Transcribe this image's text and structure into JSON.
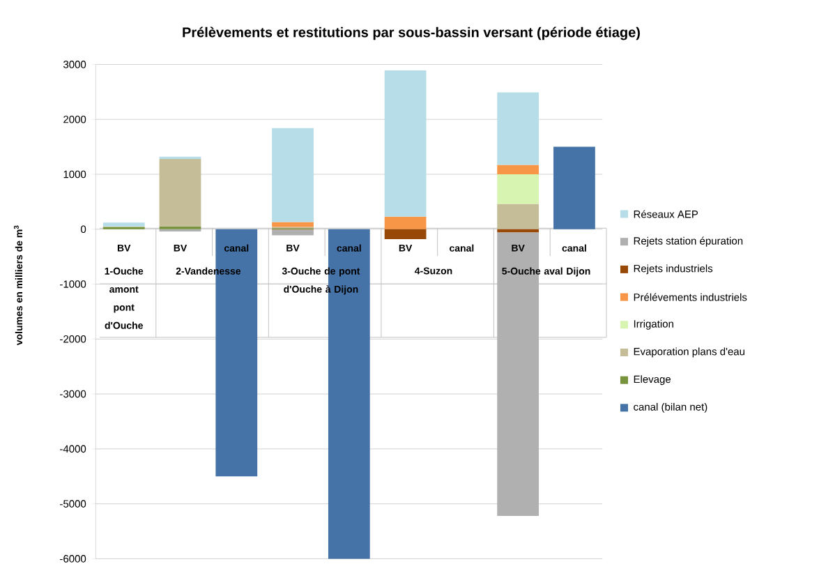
{
  "chart_data": {
    "type": "bar",
    "stacked": true,
    "title": "Prélèvements et restitutions par sous-bassin versant (période étiage)",
    "ylabel": "volumes en milliers de m$^{3}$",
    "categories": [
      "BV",
      "BV",
      "canal",
      "BV",
      "canal",
      "BV",
      "canal",
      "BV",
      "canal"
    ],
    "series": [
      {
        "name": "canal (bilan net)",
        "color": "#4572a7",
        "values": [
          null,
          null,
          -4500,
          null,
          -6000,
          null,
          null,
          null,
          1500
        ]
      },
      {
        "name": "Elevage",
        "color": "#77933c",
        "values": [
          40,
          50,
          null,
          20,
          null,
          null,
          null,
          null,
          null
        ]
      },
      {
        "name": "Evaporation plans d'eau",
        "color": "#c4bd97",
        "values": [
          10,
          1230,
          null,
          20,
          null,
          null,
          null,
          460,
          null
        ]
      },
      {
        "name": "Irrigation",
        "color": "#d7f4b0",
        "values": [
          null,
          null,
          null,
          null,
          null,
          null,
          null,
          540,
          null
        ]
      },
      {
        "name": "Prélévements industriels",
        "color": "#f79646",
        "values": [
          null,
          null,
          null,
          90,
          null,
          230,
          null,
          170,
          null
        ]
      },
      {
        "name": "Rejets industriels",
        "color": "#984807",
        "values": [
          null,
          null,
          null,
          -10,
          null,
          -180,
          null,
          -60,
          null
        ]
      },
      {
        "name": "Rejets station épuration",
        "color": "#b0b0b0",
        "values": [
          null,
          -40,
          null,
          -100,
          null,
          null,
          null,
          -5160,
          null
        ]
      },
      {
        "name": "Réseaux AEP",
        "color": "#b7dde8",
        "values": [
          70,
          40,
          null,
          1710,
          null,
          2660,
          null,
          1320,
          null
        ]
      }
    ],
    "ylim": [
      -6000,
      3000
    ],
    "yticks": [
      -6000,
      -5000,
      -4000,
      -3000,
      -2000,
      -1000,
      0,
      1000,
      2000,
      3000
    ],
    "grid": "y",
    "legend": "right",
    "annotations": [
      "1-Ouche amont pont d'Ouche",
      "2-Vandenesse",
      "3-Ouche de pont d'Ouche à Dijon",
      "4-Suzon",
      "5-Ouche aval Dijon"
    ]
  }
}
